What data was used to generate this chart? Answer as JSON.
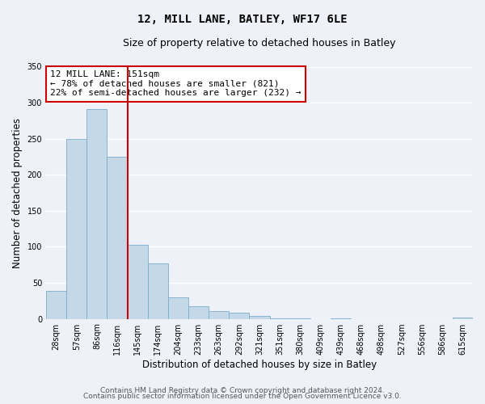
{
  "title_line1": "12, MILL LANE, BATLEY, WF17 6LE",
  "title_line2": "Size of property relative to detached houses in Batley",
  "xlabel": "Distribution of detached houses by size in Batley",
  "ylabel": "Number of detached properties",
  "bin_labels": [
    "28sqm",
    "57sqm",
    "86sqm",
    "116sqm",
    "145sqm",
    "174sqm",
    "204sqm",
    "233sqm",
    "263sqm",
    "292sqm",
    "321sqm",
    "351sqm",
    "380sqm",
    "409sqm",
    "439sqm",
    "468sqm",
    "498sqm",
    "527sqm",
    "556sqm",
    "586sqm",
    "615sqm"
  ],
  "bar_values": [
    39,
    250,
    291,
    225,
    103,
    77,
    30,
    18,
    11,
    9,
    4,
    1,
    1,
    0,
    1,
    0,
    0,
    0,
    0,
    0,
    2
  ],
  "bar_color": "#c5d8e8",
  "bar_edge_color": "#7aaec8",
  "vline_index": 4,
  "vline_color": "#cc0000",
  "annotation_text": "12 MILL LANE: 151sqm\n← 78% of detached houses are smaller (821)\n22% of semi-detached houses are larger (232) →",
  "annotation_box_color": "white",
  "annotation_box_edge_color": "#cc0000",
  "ylim": [
    0,
    350
  ],
  "yticks": [
    0,
    50,
    100,
    150,
    200,
    250,
    300,
    350
  ],
  "footer_line1": "Contains HM Land Registry data © Crown copyright and database right 2024.",
  "footer_line2": "Contains public sector information licensed under the Open Government Licence v3.0.",
  "background_color": "#eef2f8",
  "grid_color": "#ffffff",
  "title_fontsize": 10,
  "subtitle_fontsize": 9,
  "axis_label_fontsize": 8.5,
  "tick_fontsize": 7,
  "annotation_fontsize": 8,
  "footer_fontsize": 6.5
}
